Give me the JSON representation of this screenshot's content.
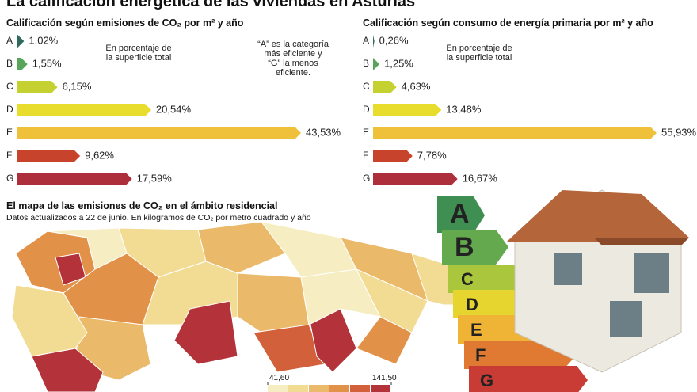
{
  "title": "La calificación energética de las viviendas en Asturias",
  "chart_data": [
    {
      "type": "bar",
      "orientation": "horizontal",
      "title": "Calificación según emisiones de CO₂ por m² y año",
      "categories": [
        "A",
        "B",
        "C",
        "D",
        "E",
        "F",
        "G"
      ],
      "values": [
        1.02,
        1.55,
        6.15,
        20.54,
        43.53,
        9.62,
        17.59
      ],
      "value_labels": [
        "1,02%",
        "1,55%",
        "6,15%",
        "20,54%",
        "43,53%",
        "9,62%",
        "17,59%"
      ],
      "colors": [
        "#2f6a5c",
        "#58a55a",
        "#c4d130",
        "#e8dc2c",
        "#efc13a",
        "#c8432c",
        "#ad2f3c"
      ],
      "annotations": [
        "En porcentaje de la superficie total",
        "“A” es la categoría más eficiente y “G” la menos eficiente."
      ]
    },
    {
      "type": "bar",
      "orientation": "horizontal",
      "title": "Calificación según consumo de energía primaria por m² y año",
      "categories": [
        "A",
        "B",
        "C",
        "D",
        "E",
        "F",
        "G"
      ],
      "values": [
        0.26,
        1.25,
        4.63,
        13.48,
        55.93,
        7.78,
        16.67
      ],
      "value_labels": [
        "0,26%",
        "1,25%",
        "4,63%",
        "13,48%",
        "55,93%",
        "7,78%",
        "16,67%"
      ],
      "colors": [
        "#2f6a5c",
        "#58a55a",
        "#c4d130",
        "#e8dc2c",
        "#efc13a",
        "#c8432c",
        "#ad2f3c"
      ],
      "annotations": [
        "En porcentaje de la superficie total"
      ]
    }
  ],
  "map": {
    "title": "El mapa de las emisiones de CO₂ en el ámbito residencial",
    "subtitle": "Datos actualizados a 22 de junio. En kilogramos de CO₂ por metro cuadrado y año",
    "legend": {
      "min": {
        "value": 41.6,
        "label": "41,60"
      },
      "max": {
        "value": 141.5,
        "label": "141,50"
      },
      "colors": [
        "#f6eec2",
        "#f2dc93",
        "#eab969",
        "#e29148",
        "#d2603a",
        "#b4333a"
      ]
    }
  }
}
